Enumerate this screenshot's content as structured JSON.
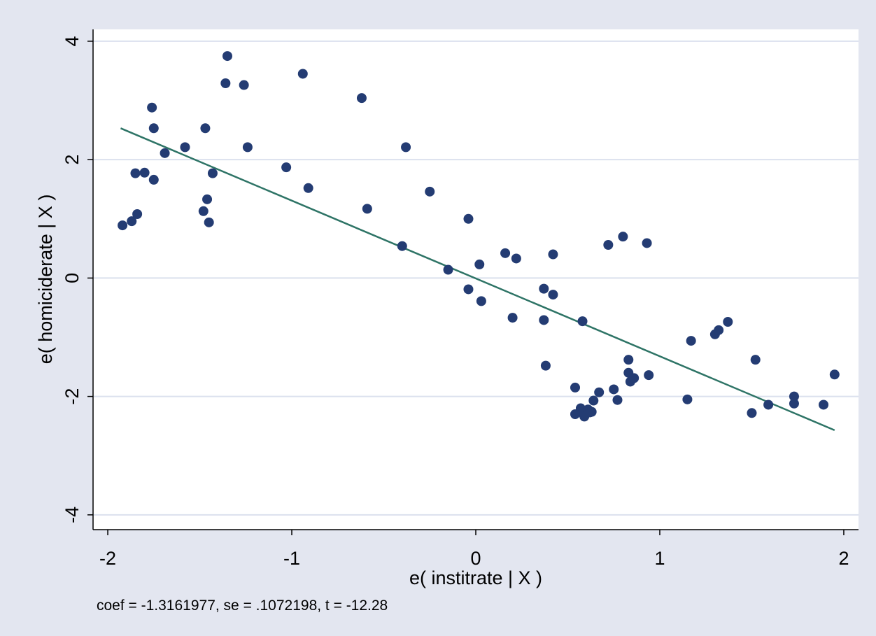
{
  "colors": {
    "outer_background": "#e3e6f0",
    "plot_background": "#ffffff",
    "gridline": "#dbe1ee",
    "marker": "#243c73",
    "fit_line": "#2e7466",
    "axis": "#000000"
  },
  "chart_data": {
    "type": "scatter",
    "xlabel": "e( institrate | X )",
    "ylabel": "e( homiciderate | X )",
    "note": "coef = -1.3161977, se = .1072198, t = -12.28",
    "xlim": [
      -2.08,
      2.08
    ],
    "ylim": [
      -4.25,
      4.2
    ],
    "x_ticks": [
      -2,
      -1,
      0,
      1,
      2
    ],
    "x_tick_labels": [
      "-2",
      "-1",
      "0",
      "1",
      "2"
    ],
    "y_ticks": [
      -4,
      -2,
      0,
      2,
      4
    ],
    "y_tick_labels": [
      "-4",
      "-2",
      "0",
      "2",
      "4"
    ],
    "grid": "horizontal",
    "legend": "none",
    "series": [
      {
        "kind": "points",
        "points": [
          [
            -1.92,
            0.89
          ],
          [
            -1.87,
            0.96
          ],
          [
            -1.84,
            1.08
          ],
          [
            -1.85,
            1.77
          ],
          [
            -1.8,
            1.78
          ],
          [
            -1.75,
            1.66
          ],
          [
            -1.76,
            2.88
          ],
          [
            -1.75,
            2.53
          ],
          [
            -1.69,
            2.11
          ],
          [
            -1.58,
            2.21
          ],
          [
            -1.48,
            1.13
          ],
          [
            -1.47,
            2.53
          ],
          [
            -1.46,
            1.33
          ],
          [
            -1.45,
            0.94
          ],
          [
            -1.43,
            1.77
          ],
          [
            -1.36,
            3.29
          ],
          [
            -1.35,
            3.75
          ],
          [
            -1.26,
            3.26
          ],
          [
            -1.24,
            2.21
          ],
          [
            -1.03,
            1.87
          ],
          [
            -0.94,
            3.45
          ],
          [
            -0.91,
            1.52
          ],
          [
            -0.62,
            3.04
          ],
          [
            -0.59,
            1.17
          ],
          [
            -0.4,
            0.54
          ],
          [
            -0.38,
            2.21
          ],
          [
            -0.25,
            1.46
          ],
          [
            -0.15,
            0.14
          ],
          [
            -0.04,
            1.0
          ],
          [
            -0.04,
            -0.19
          ],
          [
            0.02,
            0.23
          ],
          [
            0.03,
            -0.39
          ],
          [
            0.16,
            0.42
          ],
          [
            0.2,
            -0.67
          ],
          [
            0.22,
            0.33
          ],
          [
            0.37,
            -0.18
          ],
          [
            0.37,
            -0.71
          ],
          [
            0.38,
            -1.48
          ],
          [
            0.42,
            0.4
          ],
          [
            0.42,
            -0.28
          ],
          [
            0.54,
            -1.85
          ],
          [
            0.54,
            -2.3
          ],
          [
            0.57,
            -2.2
          ],
          [
            0.58,
            -0.73
          ],
          [
            0.58,
            -2.28
          ],
          [
            0.59,
            -2.34
          ],
          [
            0.61,
            -2.22
          ],
          [
            0.62,
            -2.27
          ],
          [
            0.63,
            -2.26
          ],
          [
            0.64,
            -2.07
          ],
          [
            0.67,
            -1.93
          ],
          [
            0.72,
            0.56
          ],
          [
            0.75,
            -1.88
          ],
          [
            0.77,
            -2.06
          ],
          [
            0.8,
            0.7
          ],
          [
            0.83,
            -1.38
          ],
          [
            0.83,
            -1.6
          ],
          [
            0.84,
            -1.75
          ],
          [
            0.86,
            -1.69
          ],
          [
            0.93,
            0.59
          ],
          [
            0.94,
            -1.64
          ],
          [
            1.15,
            -2.05
          ],
          [
            1.17,
            -1.06
          ],
          [
            1.3,
            -0.95
          ],
          [
            1.32,
            -0.88
          ],
          [
            1.37,
            -0.74
          ],
          [
            1.5,
            -2.28
          ],
          [
            1.52,
            -1.38
          ],
          [
            1.59,
            -2.14
          ],
          [
            1.73,
            -2.12
          ],
          [
            1.73,
            -2.0
          ],
          [
            1.89,
            -2.14
          ],
          [
            1.95,
            -1.63
          ]
        ]
      },
      {
        "kind": "fitted-line",
        "points": [
          [
            -1.93,
            2.53
          ],
          [
            1.95,
            -2.57
          ]
        ]
      }
    ]
  }
}
